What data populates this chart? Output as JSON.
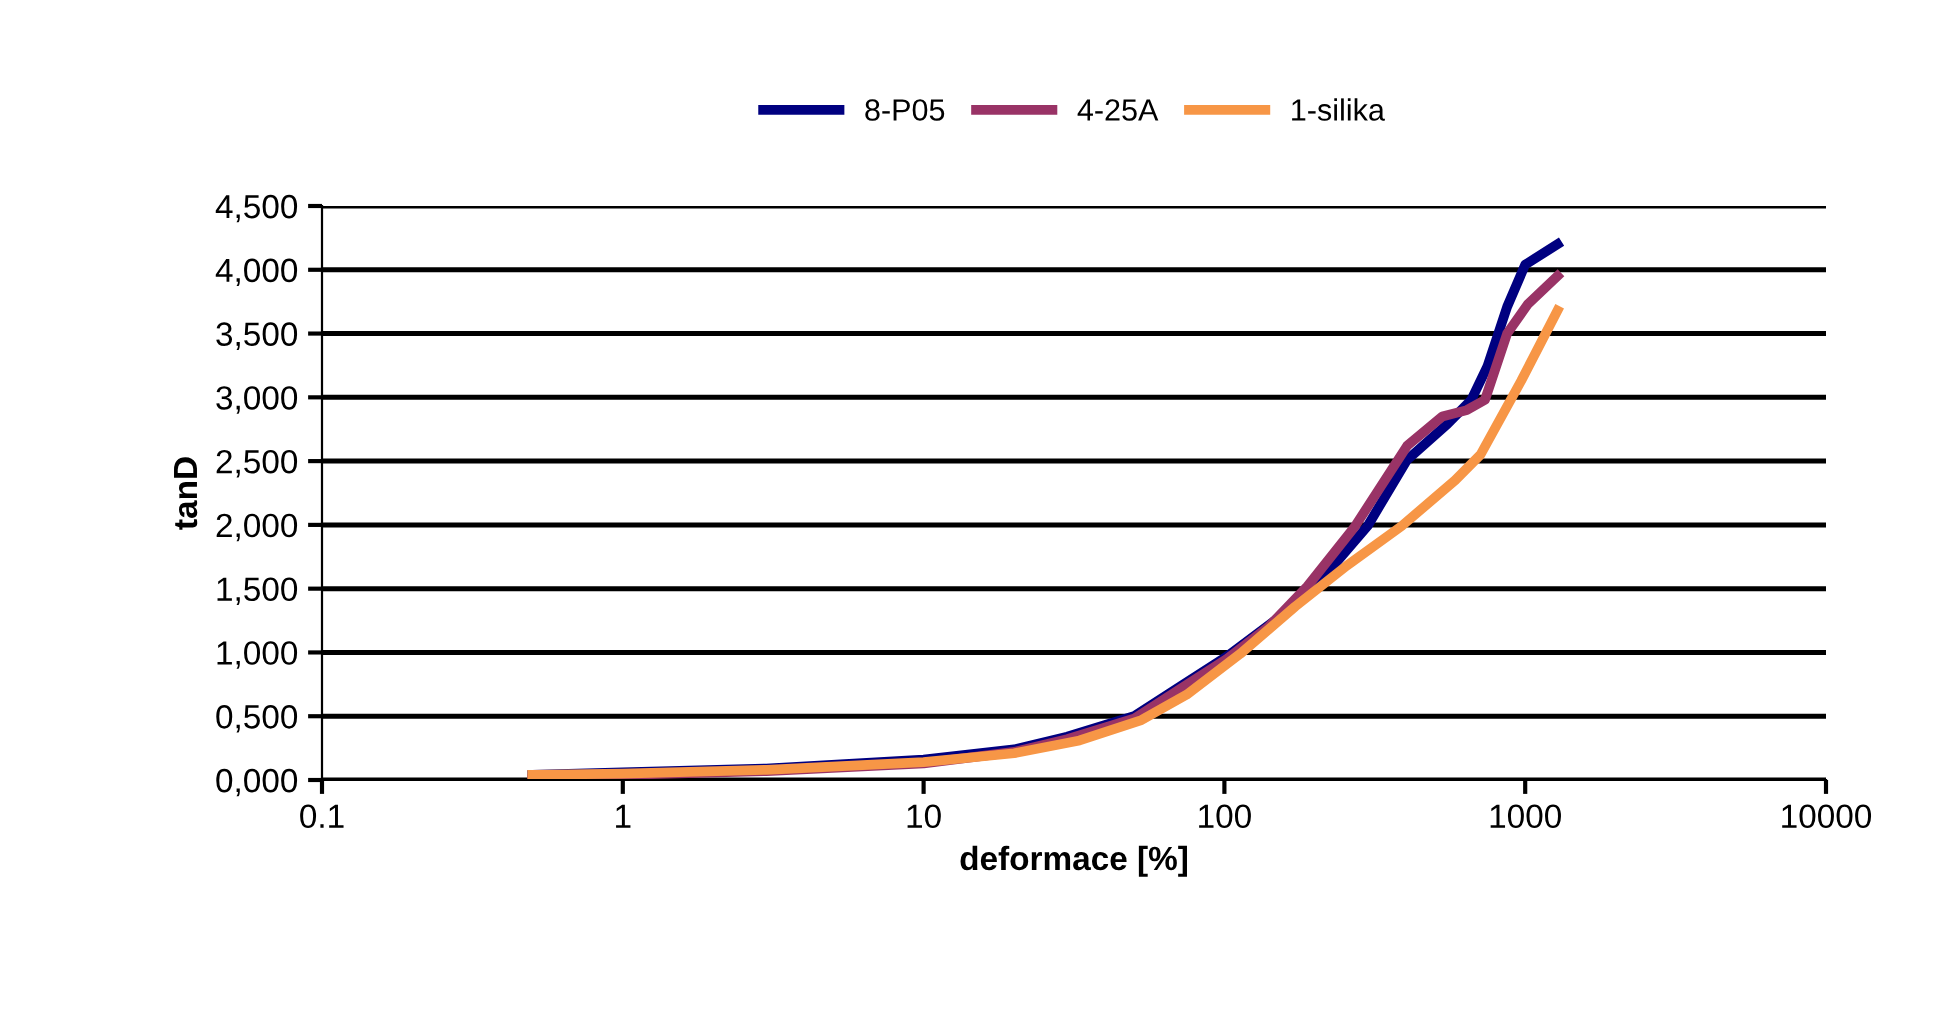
{
  "chart_data": {
    "type": "line",
    "xlabel": "deformace [%]",
    "ylabel": "tanD",
    "log": "x",
    "grid": "y",
    "legend": "top",
    "marker": "none",
    "line_style": "solid",
    "xlim": [
      0.1,
      10000
    ],
    "xticks": [
      0.1,
      1,
      10,
      100,
      1000,
      10000
    ],
    "ylim": [
      0,
      4.5
    ],
    "yticks": [
      {
        "value": 0,
        "label": "0,000"
      },
      {
        "value": 0.5,
        "label": "0,500"
      },
      {
        "value": 1,
        "label": "1,000"
      },
      {
        "value": 1.5,
        "label": "1,500"
      },
      {
        "value": 2,
        "label": "2,000"
      },
      {
        "value": 2.5,
        "label": "2,500"
      },
      {
        "value": 3,
        "label": "3,000"
      },
      {
        "value": 3.5,
        "label": "3,500"
      },
      {
        "value": 4,
        "label": "4,000"
      },
      {
        "value": 4.5,
        "label": "4,500"
      }
    ],
    "series": [
      {
        "name": "8-P05",
        "color": "#000080",
        "x": [
          0.5,
          1,
          3,
          10,
          20,
          30,
          50,
          72,
          102,
          147,
          210,
          299,
          405,
          551,
          662,
          748,
          871,
          1000,
          1280
        ],
        "values": [
          0.04,
          0.06,
          0.09,
          0.16,
          0.24,
          0.34,
          0.5,
          0.74,
          0.97,
          1.25,
          1.57,
          1.99,
          2.51,
          2.79,
          2.98,
          3.24,
          3.71,
          4.04,
          4.2
        ]
      },
      {
        "name": "4-25A",
        "color": "#993366",
        "x": [
          0.5,
          1,
          3,
          10,
          20,
          30,
          50,
          72,
          102,
          140,
          189,
          272,
          405,
          530,
          640,
          735,
          871,
          1020,
          1280
        ],
        "values": [
          0.01,
          0.04,
          0.07,
          0.13,
          0.22,
          0.32,
          0.48,
          0.72,
          0.95,
          1.2,
          1.52,
          1.99,
          2.62,
          2.85,
          2.9,
          2.98,
          3.5,
          3.73,
          3.95
        ]
      },
      {
        "name": "1-silika",
        "color": "#f79646",
        "x": [
          0.5,
          1,
          3,
          10,
          20,
          33,
          53,
          75,
          113,
          172,
          255,
          388,
          585,
          710,
          970,
          1280
        ],
        "values": [
          0.04,
          0.05,
          0.08,
          0.14,
          0.21,
          0.31,
          0.47,
          0.67,
          0.99,
          1.36,
          1.68,
          1.99,
          2.35,
          2.55,
          3.13,
          3.68
        ]
      }
    ]
  }
}
